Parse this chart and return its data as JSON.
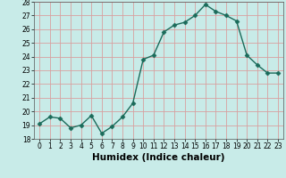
{
  "x": [
    0,
    1,
    2,
    3,
    4,
    5,
    6,
    7,
    8,
    9,
    10,
    11,
    12,
    13,
    14,
    15,
    16,
    17,
    18,
    19,
    20,
    21,
    22,
    23
  ],
  "y": [
    19.1,
    19.6,
    19.5,
    18.8,
    19.0,
    19.7,
    18.4,
    18.9,
    19.6,
    20.6,
    23.8,
    24.1,
    25.8,
    26.3,
    26.5,
    27.0,
    27.8,
    27.3,
    27.0,
    26.6,
    24.1,
    23.4,
    22.8,
    22.8
  ],
  "line_color": "#1a6b5a",
  "marker": "D",
  "marker_size": 2.5,
  "bg_color": "#c8ebe8",
  "grid_color": "#d8a0a0",
  "xlabel": "Humidex (Indice chaleur)",
  "ylim": [
    18,
    28
  ],
  "yticks": [
    18,
    19,
    20,
    21,
    22,
    23,
    24,
    25,
    26,
    27,
    28
  ],
  "xticks": [
    0,
    1,
    2,
    3,
    4,
    5,
    6,
    7,
    8,
    9,
    10,
    11,
    12,
    13,
    14,
    15,
    16,
    17,
    18,
    19,
    20,
    21,
    22,
    23
  ],
  "tick_fontsize": 5.5,
  "xlabel_fontsize": 7.5,
  "linewidth": 1.0
}
